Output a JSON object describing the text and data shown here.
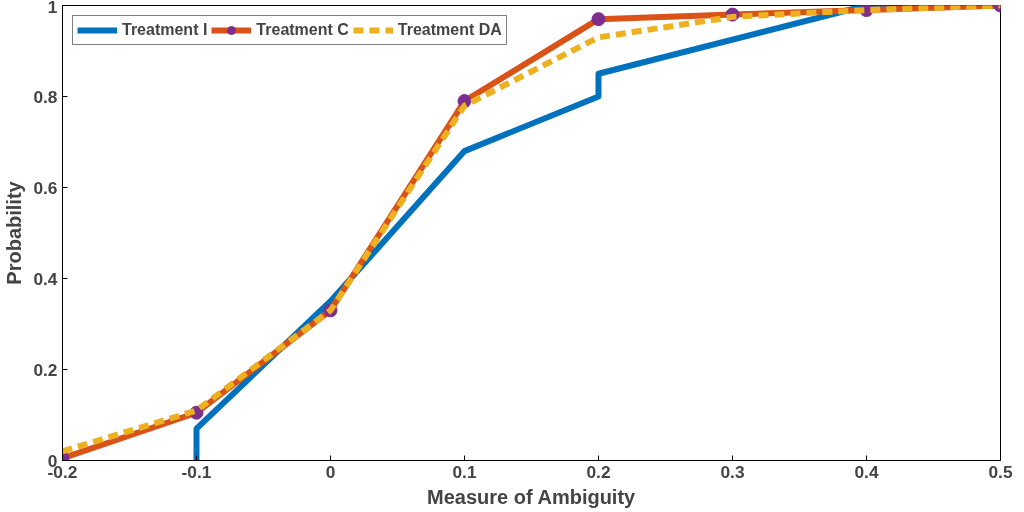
{
  "chart_data": {
    "type": "line",
    "xlabel": "Measure of Ambiguity",
    "ylabel": "Probability",
    "xlim": [
      -0.2,
      0.5
    ],
    "xticks": [
      -0.2,
      -0.1,
      0,
      0.1,
      0.2,
      0.3,
      0.4,
      0.5
    ],
    "ylim": [
      0,
      1
    ],
    "yticks": [
      0,
      0.2,
      0.4,
      0.6,
      0.8,
      1
    ],
    "grid": false,
    "legend": "top left",
    "series": [
      {
        "name": "Treatment I",
        "color": "#0072bd",
        "x": [
          -0.1,
          -0.1,
          0,
          0.1,
          0.2,
          0.2,
          0.4,
          0.5
        ],
        "values": [
          0,
          0.07,
          0.35,
          0.68,
          0.8,
          0.85,
          1,
          1
        ],
        "marker": "none",
        "line_style": "solid"
      },
      {
        "name": "Treatment C",
        "color": "#d95319",
        "x": [
          -0.2,
          -0.1,
          0,
          0.1,
          0.2,
          0.3,
          0.4,
          0.5
        ],
        "values": [
          0.005,
          0.105,
          0.33,
          0.79,
          0.97,
          0.98,
          0.99,
          1
        ],
        "marker": "circle",
        "line_style": "solid"
      },
      {
        "name": "Treatment DA",
        "color": "#edb120",
        "x": [
          -0.2,
          -0.1,
          0,
          0.1,
          0.2,
          0.3,
          0.4,
          0.5
        ],
        "values": [
          0.02,
          0.11,
          0.33,
          0.78,
          0.93,
          0.975,
          0.99,
          1
        ],
        "marker": "none",
        "line_style": "dashed"
      }
    ]
  }
}
